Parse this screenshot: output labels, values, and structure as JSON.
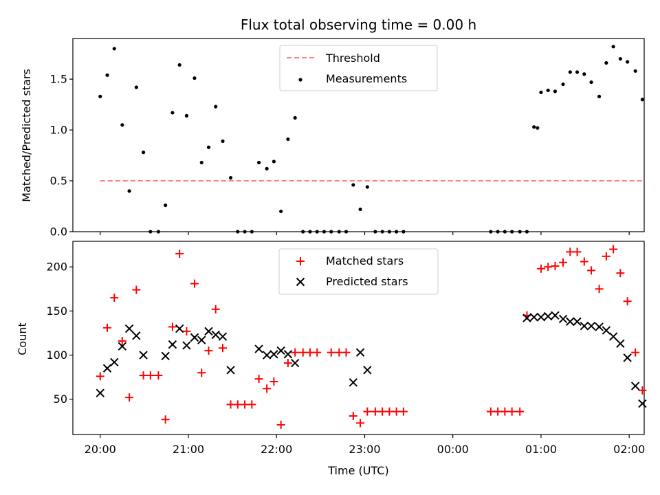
{
  "chart_data": {
    "title": "Flux total observing time = 0.00 h",
    "xlabel": "Time (UTC)",
    "x_tick_labels": [
      "20:00",
      "21:00",
      "22:00",
      "23:00",
      "00:00",
      "01:00",
      "02:00"
    ],
    "x_ticks_hours": [
      0,
      1,
      2,
      3,
      4,
      5,
      6
    ],
    "xlim_hours": [
      -0.31,
      6.17
    ],
    "x_unit_note": "hours since 20:00 UTC",
    "panels": [
      {
        "type": "scatter",
        "ylabel": "Matched/Predicted stars",
        "ylim": [
          0,
          1.9
        ],
        "yticks": [
          0.0,
          0.5,
          1.0,
          1.5
        ],
        "ytick_labels": [
          "0.0",
          "0.5",
          "1.0",
          "1.5"
        ],
        "series": [
          {
            "name": "Threshold",
            "style": "dashed-line",
            "color": "#ff7f7f",
            "x": [
              0,
              6.17
            ],
            "values": [
              0.5,
              0.5
            ]
          },
          {
            "name": "Measurements",
            "style": "dot",
            "color": "#000000",
            "points": [
              [
                0,
                1.33
              ],
              [
                0.08,
                1.54
              ],
              [
                0.16,
                1.8
              ],
              [
                0.25,
                1.05
              ],
              [
                0.33,
                0.4
              ],
              [
                0.41,
                1.42
              ],
              [
                0.49,
                0.78
              ],
              [
                0.57,
                0
              ],
              [
                0.66,
                0
              ],
              [
                0.74,
                0.26
              ],
              [
                0.82,
                1.17
              ],
              [
                0.9,
                1.64
              ],
              [
                0.98,
                1.14
              ],
              [
                1.07,
                1.51
              ],
              [
                1.15,
                0.68
              ],
              [
                1.23,
                0.83
              ],
              [
                1.31,
                1.23
              ],
              [
                1.39,
                0.89
              ],
              [
                1.48,
                0.53
              ],
              [
                1.56,
                0
              ],
              [
                1.64,
                0
              ],
              [
                1.72,
                0
              ],
              [
                1.8,
                0.68
              ],
              [
                1.89,
                0.62
              ],
              [
                1.97,
                0.69
              ],
              [
                2.05,
                0.2
              ],
              [
                2.13,
                0.91
              ],
              [
                2.21,
                1.12
              ],
              [
                2.3,
                0
              ],
              [
                2.38,
                0
              ],
              [
                2.46,
                0
              ],
              [
                2.54,
                0
              ],
              [
                2.62,
                0
              ],
              [
                2.71,
                0
              ],
              [
                2.79,
                0
              ],
              [
                2.87,
                0.46
              ],
              [
                2.95,
                0.22
              ],
              [
                3.03,
                0.44
              ],
              [
                3.12,
                0
              ],
              [
                3.2,
                0
              ],
              [
                3.28,
                0
              ],
              [
                3.36,
                0
              ],
              [
                3.44,
                0
              ],
              [
                4.43,
                0
              ],
              [
                4.51,
                0
              ],
              [
                4.59,
                0
              ],
              [
                4.67,
                0
              ],
              [
                4.76,
                0
              ],
              [
                4.84,
                0
              ],
              [
                4.92,
                1.03
              ],
              [
                4.96,
                1.02
              ],
              [
                5.0,
                1.37
              ],
              [
                5.08,
                1.39
              ],
              [
                5.16,
                1.38
              ],
              [
                5.25,
                1.45
              ],
              [
                5.33,
                1.57
              ],
              [
                5.41,
                1.57
              ],
              [
                5.49,
                1.55
              ],
              [
                5.57,
                1.47
              ],
              [
                5.66,
                1.33
              ],
              [
                5.74,
                1.66
              ],
              [
                5.82,
                1.82
              ],
              [
                5.9,
                1.7
              ],
              [
                5.98,
                1.67
              ],
              [
                6.07,
                1.58
              ],
              [
                6.15,
                1.3
              ]
            ]
          }
        ]
      },
      {
        "type": "scatter",
        "ylabel": "Count",
        "ylim": [
          10,
          229
        ],
        "yticks": [
          50,
          100,
          150,
          200
        ],
        "ytick_labels": [
          "50",
          "100",
          "150",
          "200"
        ],
        "series": [
          {
            "name": "Matched stars",
            "style": "plus",
            "color": "#ff0000",
            "points": [
              [
                0,
                76
              ],
              [
                0.08,
                131
              ],
              [
                0.16,
                165
              ],
              [
                0.25,
                116
              ],
              [
                0.33,
                52
              ],
              [
                0.41,
                174
              ],
              [
                0.49,
                77
              ],
              [
                0.57,
                77
              ],
              [
                0.66,
                77
              ],
              [
                0.74,
                27
              ],
              [
                0.82,
                132
              ],
              [
                0.9,
                215
              ],
              [
                0.98,
                127
              ],
              [
                1.07,
                181
              ],
              [
                1.15,
                80
              ],
              [
                1.23,
                105
              ],
              [
                1.31,
                152
              ],
              [
                1.39,
                108
              ],
              [
                1.48,
                44
              ],
              [
                1.56,
                44
              ],
              [
                1.64,
                44
              ],
              [
                1.72,
                44
              ],
              [
                1.8,
                73
              ],
              [
                1.89,
                62
              ],
              [
                1.97,
                70
              ],
              [
                2.05,
                21
              ],
              [
                2.13,
                91
              ],
              [
                2.21,
                103
              ],
              [
                2.3,
                103
              ],
              [
                2.38,
                103
              ],
              [
                2.46,
                103
              ],
              [
                2.62,
                103
              ],
              [
                2.71,
                103
              ],
              [
                2.79,
                103
              ],
              [
                2.87,
                31
              ],
              [
                2.95,
                23
              ],
              [
                3.03,
                36
              ],
              [
                3.12,
                36
              ],
              [
                3.2,
                36
              ],
              [
                3.28,
                36
              ],
              [
                3.36,
                36
              ],
              [
                3.44,
                36
              ],
              [
                4.43,
                36
              ],
              [
                4.51,
                36
              ],
              [
                4.59,
                36
              ],
              [
                4.67,
                36
              ],
              [
                4.76,
                36
              ],
              [
                4.84,
                145
              ],
              [
                5.0,
                198
              ],
              [
                5.08,
                200
              ],
              [
                5.16,
                201
              ],
              [
                5.25,
                205
              ],
              [
                5.33,
                217
              ],
              [
                5.41,
                217
              ],
              [
                5.49,
                206
              ],
              [
                5.57,
                196
              ],
              [
                5.66,
                175
              ],
              [
                5.74,
                212
              ],
              [
                5.82,
                220
              ],
              [
                5.9,
                193
              ],
              [
                5.98,
                161
              ],
              [
                6.07,
                103
              ],
              [
                6.15,
                60
              ]
            ]
          },
          {
            "name": "Predicted stars",
            "style": "x",
            "color": "#000000",
            "points": [
              [
                0,
                57
              ],
              [
                0.08,
                85
              ],
              [
                0.16,
                92
              ],
              [
                0.25,
                110
              ],
              [
                0.33,
                130
              ],
              [
                0.41,
                122
              ],
              [
                0.49,
                100
              ],
              [
                0.74,
                99
              ],
              [
                0.82,
                112
              ],
              [
                0.9,
                130
              ],
              [
                0.98,
                111
              ],
              [
                1.07,
                120
              ],
              [
                1.15,
                117
              ],
              [
                1.23,
                127
              ],
              [
                1.31,
                123
              ],
              [
                1.39,
                121
              ],
              [
                1.48,
                83
              ],
              [
                1.8,
                107
              ],
              [
                1.89,
                100
              ],
              [
                1.97,
                101
              ],
              [
                2.05,
                105
              ],
              [
                2.13,
                101
              ],
              [
                2.21,
                91
              ],
              [
                2.87,
                69
              ],
              [
                2.95,
                103
              ],
              [
                3.03,
                83
              ],
              [
                4.84,
                142
              ],
              [
                4.92,
                143
              ],
              [
                5.0,
                143
              ],
              [
                5.08,
                144
              ],
              [
                5.16,
                145
              ],
              [
                5.25,
                141
              ],
              [
                5.33,
                138
              ],
              [
                5.41,
                138
              ],
              [
                5.49,
                133
              ],
              [
                5.57,
                133
              ],
              [
                5.66,
                132
              ],
              [
                5.74,
                128
              ],
              [
                5.82,
                121
              ],
              [
                5.9,
                113
              ],
              [
                5.98,
                97
              ],
              [
                6.07,
                65
              ],
              [
                6.15,
                45
              ]
            ]
          }
        ]
      }
    ]
  }
}
